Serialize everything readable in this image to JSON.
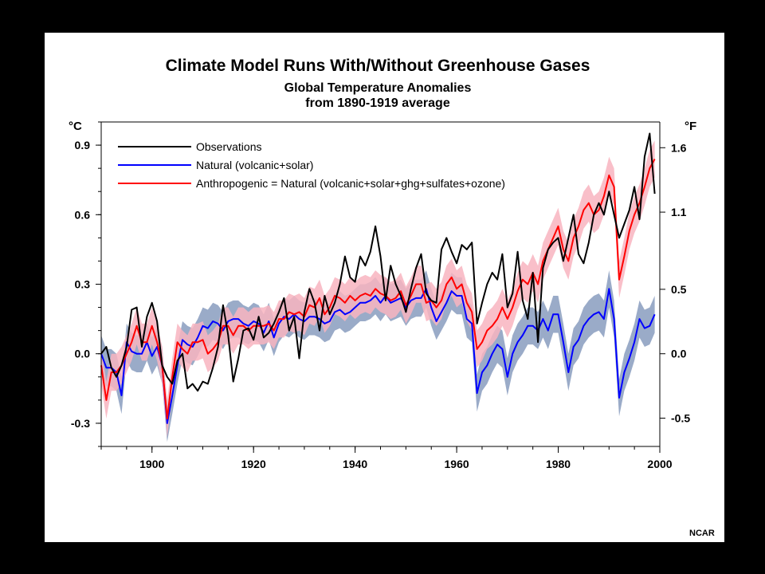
{
  "chart_data": {
    "type": "line",
    "title": "Climate Model Runs With/Without Greenhouse Gases",
    "subtitle_line1": "Global Temperature Anomalies",
    "subtitle_line2": "from 1890-1919 average",
    "ylabel_left": "°C",
    "ylabel_right": "°F",
    "credit": "NCAR",
    "xlim": [
      1890,
      2000
    ],
    "ylim": [
      -0.4,
      1.0
    ],
    "x_ticks": [
      1900,
      1920,
      1940,
      1960,
      1980,
      2000
    ],
    "y_ticks_left": [
      {
        "value": 0.9,
        "label": "0.9"
      },
      {
        "value": 0.6,
        "label": "0.6"
      },
      {
        "value": 0.3,
        "label": "0.3"
      },
      {
        "value": 0.0,
        "label": "0.0"
      },
      {
        "value": -0.3,
        "label": "-0.3"
      }
    ],
    "y_ticks_right": [
      {
        "value": 0.889,
        "label": "1.6"
      },
      {
        "value": 0.611,
        "label": "1.1"
      },
      {
        "value": 0.278,
        "label": "0.5"
      },
      {
        "value": 0.0,
        "label": "0.0"
      },
      {
        "value": -0.278,
        "label": "-0.5"
      }
    ],
    "legend_position": "top-left",
    "series": [
      {
        "name": "Observations",
        "color": "#000000",
        "x": [
          1890,
          1891,
          1892,
          1893,
          1894,
          1895,
          1896,
          1897,
          1898,
          1899,
          1900,
          1901,
          1902,
          1903,
          1904,
          1905,
          1906,
          1907,
          1908,
          1909,
          1910,
          1911,
          1912,
          1913,
          1914,
          1915,
          1916,
          1917,
          1918,
          1919,
          1920,
          1921,
          1922,
          1923,
          1924,
          1925,
          1926,
          1927,
          1928,
          1929,
          1930,
          1931,
          1932,
          1933,
          1934,
          1935,
          1936,
          1937,
          1938,
          1939,
          1940,
          1941,
          1942,
          1943,
          1944,
          1945,
          1946,
          1947,
          1948,
          1949,
          1950,
          1951,
          1952,
          1953,
          1954,
          1955,
          1956,
          1957,
          1958,
          1959,
          1960,
          1961,
          1962,
          1963,
          1964,
          1965,
          1966,
          1967,
          1968,
          1969,
          1970,
          1971,
          1972,
          1973,
          1974,
          1975,
          1976,
          1977,
          1978,
          1979,
          1980,
          1981,
          1982,
          1983,
          1984,
          1985,
          1986,
          1987,
          1988,
          1989,
          1990,
          1991,
          1992,
          1993,
          1994,
          1995,
          1996,
          1997,
          1998,
          1999
        ],
        "values": [
          0.0,
          0.03,
          -0.06,
          -0.1,
          -0.05,
          0.03,
          0.19,
          0.2,
          0.03,
          0.16,
          0.22,
          0.14,
          -0.05,
          -0.1,
          -0.13,
          -0.03,
          0.0,
          -0.15,
          -0.13,
          -0.16,
          -0.12,
          -0.13,
          -0.06,
          0.03,
          0.21,
          0.08,
          -0.12,
          -0.02,
          0.1,
          0.11,
          0.06,
          0.16,
          0.07,
          0.09,
          0.13,
          0.18,
          0.24,
          0.1,
          0.16,
          -0.02,
          0.18,
          0.28,
          0.22,
          0.1,
          0.25,
          0.17,
          0.22,
          0.3,
          0.42,
          0.33,
          0.31,
          0.42,
          0.38,
          0.44,
          0.55,
          0.42,
          0.23,
          0.38,
          0.3,
          0.25,
          0.18,
          0.28,
          0.37,
          0.43,
          0.26,
          0.23,
          0.22,
          0.45,
          0.5,
          0.44,
          0.39,
          0.47,
          0.45,
          0.48,
          0.13,
          0.22,
          0.3,
          0.35,
          0.32,
          0.43,
          0.2,
          0.26,
          0.44,
          0.23,
          0.15,
          0.35,
          0.05,
          0.37,
          0.45,
          0.48,
          0.5,
          0.4,
          0.5,
          0.6,
          0.43,
          0.39,
          0.48,
          0.6,
          0.65,
          0.6,
          0.7,
          0.6,
          0.5,
          0.56,
          0.62,
          0.72,
          0.58,
          0.85,
          0.95,
          0.69
        ]
      },
      {
        "name": "Natural (volcanic+solar)",
        "color": "#0000ff",
        "x": [
          1890,
          1891,
          1892,
          1893,
          1894,
          1895,
          1896,
          1897,
          1898,
          1899,
          1900,
          1901,
          1902,
          1903,
          1904,
          1905,
          1906,
          1907,
          1908,
          1909,
          1910,
          1911,
          1912,
          1913,
          1914,
          1915,
          1916,
          1917,
          1918,
          1919,
          1920,
          1921,
          1922,
          1923,
          1924,
          1925,
          1926,
          1927,
          1928,
          1929,
          1930,
          1931,
          1932,
          1933,
          1934,
          1935,
          1936,
          1937,
          1938,
          1939,
          1940,
          1941,
          1942,
          1943,
          1944,
          1945,
          1946,
          1947,
          1948,
          1949,
          1950,
          1951,
          1952,
          1953,
          1954,
          1955,
          1956,
          1957,
          1958,
          1959,
          1960,
          1961,
          1962,
          1963,
          1964,
          1965,
          1966,
          1967,
          1968,
          1969,
          1970,
          1971,
          1972,
          1973,
          1974,
          1975,
          1976,
          1977,
          1978,
          1979,
          1980,
          1981,
          1982,
          1983,
          1984,
          1985,
          1986,
          1987,
          1988,
          1989,
          1990,
          1991,
          1992,
          1993,
          1994,
          1995,
          1996,
          1997,
          1998,
          1999
        ],
        "values": [
          0.0,
          -0.06,
          -0.06,
          -0.08,
          -0.18,
          0.05,
          0.01,
          0.0,
          0.0,
          0.05,
          -0.01,
          0.03,
          -0.05,
          -0.3,
          -0.18,
          -0.05,
          0.06,
          0.04,
          0.03,
          0.07,
          0.12,
          0.11,
          0.14,
          0.13,
          0.1,
          0.14,
          0.15,
          0.15,
          0.13,
          0.12,
          0.14,
          0.13,
          0.09,
          0.14,
          0.07,
          0.13,
          0.16,
          0.15,
          0.17,
          0.15,
          0.14,
          0.16,
          0.16,
          0.15,
          0.13,
          0.14,
          0.18,
          0.19,
          0.17,
          0.18,
          0.2,
          0.22,
          0.22,
          0.23,
          0.25,
          0.22,
          0.25,
          0.22,
          0.23,
          0.24,
          0.2,
          0.23,
          0.24,
          0.24,
          0.28,
          0.2,
          0.14,
          0.18,
          0.22,
          0.27,
          0.25,
          0.25,
          0.15,
          0.13,
          -0.17,
          -0.08,
          -0.05,
          0.0,
          0.04,
          0.02,
          -0.1,
          0.0,
          0.05,
          0.08,
          0.12,
          0.12,
          0.1,
          0.15,
          0.1,
          0.17,
          0.17,
          0.05,
          -0.08,
          0.03,
          0.06,
          0.12,
          0.15,
          0.17,
          0.18,
          0.15,
          0.28,
          0.15,
          -0.19,
          -0.08,
          -0.02,
          0.05,
          0.15,
          0.11,
          0.12,
          0.17
        ]
      },
      {
        "name": "Anthropogenic = Natural (volcanic+solar+ghg+sulfates+ozone)",
        "color": "#ff0000",
        "x": [
          1890,
          1891,
          1892,
          1893,
          1894,
          1895,
          1896,
          1897,
          1898,
          1899,
          1900,
          1901,
          1902,
          1903,
          1904,
          1905,
          1906,
          1907,
          1908,
          1909,
          1910,
          1911,
          1912,
          1913,
          1914,
          1915,
          1916,
          1917,
          1918,
          1919,
          1920,
          1921,
          1922,
          1923,
          1924,
          1925,
          1926,
          1927,
          1928,
          1929,
          1930,
          1931,
          1932,
          1933,
          1934,
          1935,
          1936,
          1937,
          1938,
          1939,
          1940,
          1941,
          1942,
          1943,
          1944,
          1945,
          1946,
          1947,
          1948,
          1949,
          1950,
          1951,
          1952,
          1953,
          1954,
          1955,
          1956,
          1957,
          1958,
          1959,
          1960,
          1961,
          1962,
          1963,
          1964,
          1965,
          1966,
          1967,
          1968,
          1969,
          1970,
          1971,
          1972,
          1973,
          1974,
          1975,
          1976,
          1977,
          1978,
          1979,
          1980,
          1981,
          1982,
          1983,
          1984,
          1985,
          1986,
          1987,
          1988,
          1989,
          1990,
          1991,
          1992,
          1993,
          1994,
          1995,
          1996,
          1997,
          1998,
          1999
        ],
        "values": [
          -0.05,
          -0.2,
          -0.08,
          -0.08,
          -0.05,
          0.0,
          0.05,
          0.12,
          0.05,
          0.05,
          0.12,
          0.05,
          -0.05,
          -0.28,
          -0.1,
          0.05,
          0.02,
          0.0,
          0.05,
          0.05,
          0.06,
          0.0,
          0.02,
          0.05,
          0.12,
          0.12,
          0.08,
          0.12,
          0.12,
          0.1,
          0.12,
          0.12,
          0.12,
          0.13,
          0.1,
          0.15,
          0.15,
          0.18,
          0.17,
          0.18,
          0.16,
          0.21,
          0.2,
          0.24,
          0.17,
          0.2,
          0.25,
          0.24,
          0.22,
          0.25,
          0.23,
          0.25,
          0.26,
          0.25,
          0.28,
          0.26,
          0.25,
          0.23,
          0.24,
          0.27,
          0.21,
          0.25,
          0.3,
          0.3,
          0.22,
          0.23,
          0.2,
          0.23,
          0.3,
          0.33,
          0.28,
          0.3,
          0.22,
          0.18,
          0.02,
          0.05,
          0.1,
          0.12,
          0.15,
          0.2,
          0.15,
          0.2,
          0.27,
          0.32,
          0.3,
          0.35,
          0.3,
          0.4,
          0.45,
          0.5,
          0.55,
          0.45,
          0.4,
          0.5,
          0.55,
          0.62,
          0.65,
          0.6,
          0.62,
          0.68,
          0.77,
          0.72,
          0.32,
          0.42,
          0.53,
          0.6,
          0.65,
          0.72,
          0.8,
          0.84
        ]
      }
    ],
    "bands": [
      {
        "series": "Natural (volcanic+solar)",
        "color": "#9aabc8",
        "halfwidth": 0.08
      },
      {
        "series": "Anthropogenic = Natural (volcanic+solar+ghg+sulfates+ozone)",
        "color": "#f8b4bf",
        "halfwidth": 0.08
      }
    ]
  }
}
